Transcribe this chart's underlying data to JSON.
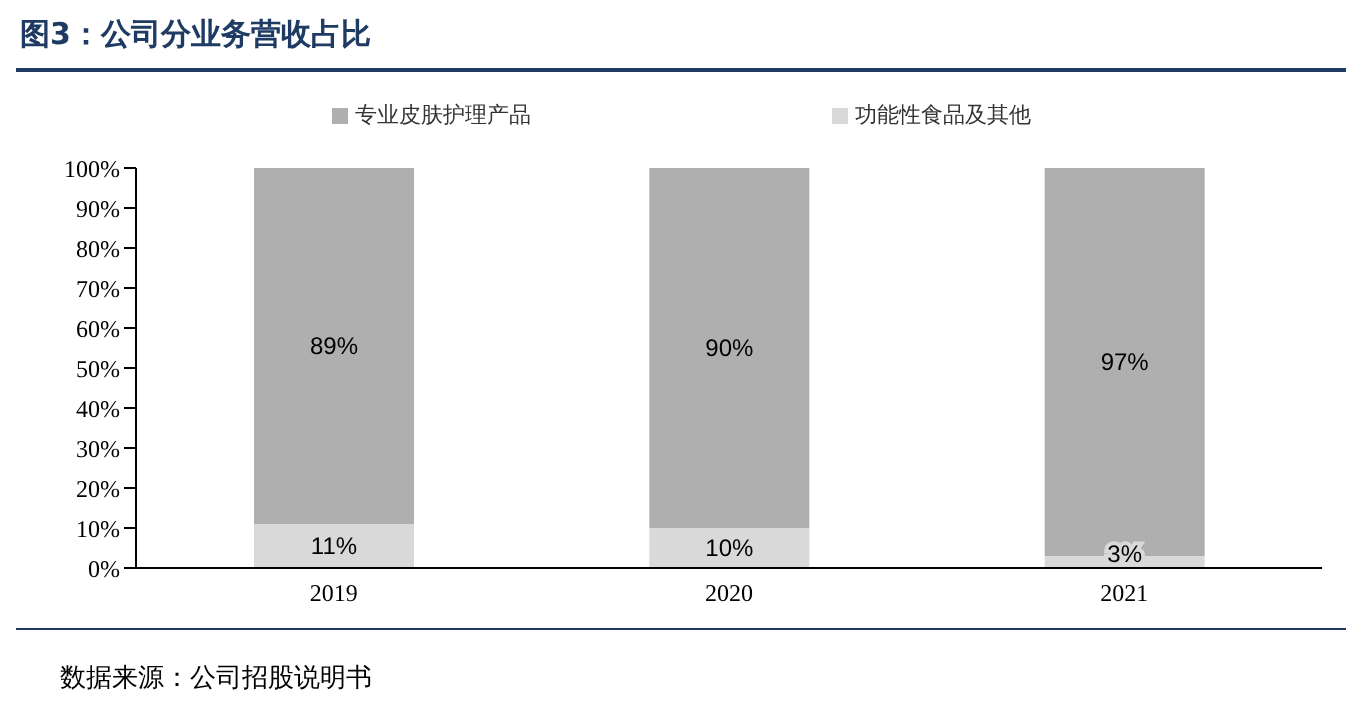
{
  "chart_data": {
    "type": "bar",
    "title": "图3：公司分业务营收占比",
    "annotations": [
      "数据来源：公司招股说明书"
    ],
    "categories": [
      "2019",
      "2020",
      "2021"
    ],
    "stacked": true,
    "legend": "top",
    "series": [
      {
        "name": "功能性食品及其他",
        "color": "#d9d9d9",
        "values": [
          11,
          10,
          3
        ],
        "value_labels": [
          "11%",
          "10%",
          "3%"
        ]
      },
      {
        "name": "专业皮肤护理产品",
        "color": "#afafaf",
        "values": [
          89,
          90,
          97
        ],
        "value_labels": [
          "89%",
          "90%",
          "97%"
        ]
      }
    ],
    "ylim": [
      0,
      100
    ],
    "yticks": [
      {
        "value": 0,
        "label": "0%"
      },
      {
        "value": 10,
        "label": "10%"
      },
      {
        "value": 20,
        "label": "20%"
      },
      {
        "value": 30,
        "label": "30%"
      },
      {
        "value": 40,
        "label": "40%"
      },
      {
        "value": 50,
        "label": "50%"
      },
      {
        "value": 60,
        "label": "60%"
      },
      {
        "value": 70,
        "label": "70%"
      },
      {
        "value": 80,
        "label": "80%"
      },
      {
        "value": 90,
        "label": "90%"
      },
      {
        "value": 100,
        "label": "100%"
      }
    ],
    "grid": false
  }
}
